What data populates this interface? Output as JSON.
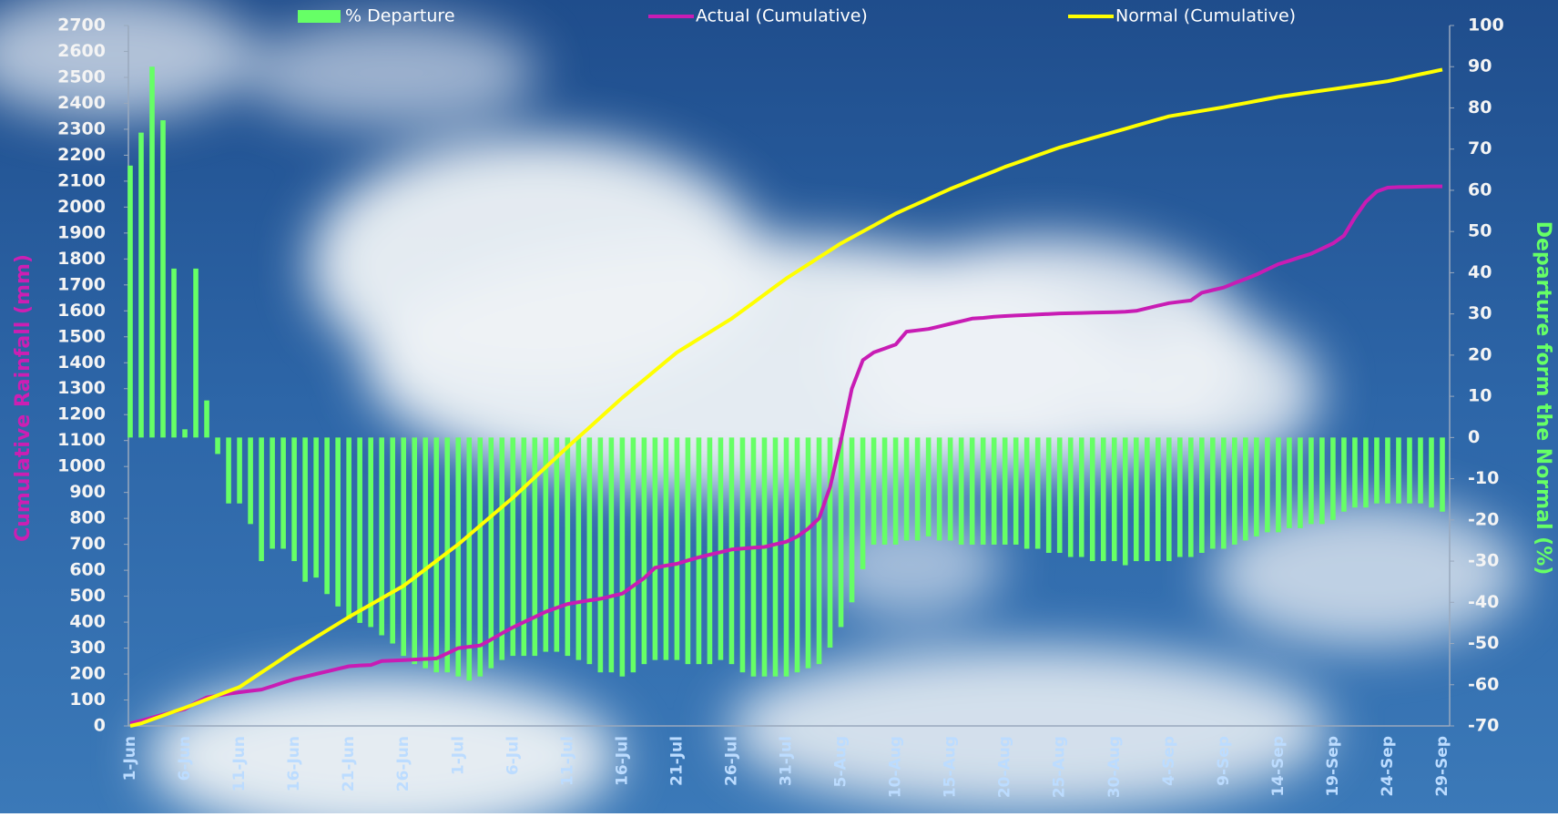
{
  "chart_data": {
    "type": "bar",
    "ylabel": "Cumulative Rainfall (mm)",
    "y2label": "Departure form the Normal (%)",
    "categories": [
      "1-Jun",
      null,
      null,
      null,
      null,
      "6-Jun",
      null,
      null,
      null,
      null,
      "11-Jun",
      null,
      null,
      null,
      null,
      "16-Jun",
      null,
      null,
      null,
      null,
      "21-Jun",
      null,
      null,
      null,
      null,
      "26-Jun",
      null,
      null,
      null,
      null,
      "1-Jul",
      null,
      null,
      null,
      null,
      "6-Jul",
      null,
      null,
      null,
      null,
      "11-Jul",
      null,
      null,
      null,
      null,
      "16-Jul",
      null,
      null,
      null,
      null,
      "21-Jul",
      null,
      null,
      null,
      null,
      "26-Jul",
      null,
      null,
      null,
      null,
      "31-Jul",
      null,
      null,
      null,
      null,
      "5-Aug",
      null,
      null,
      null,
      null,
      "10-Aug",
      null,
      null,
      null,
      null,
      "15-Aug",
      null,
      null,
      null,
      null,
      "20-Aug",
      null,
      null,
      null,
      null,
      "25-Aug",
      null,
      null,
      null,
      null,
      "30-Aug",
      null,
      null,
      null,
      null,
      "4-Sep",
      null,
      null,
      null,
      null,
      "9-Sep",
      null,
      null,
      null,
      null,
      "14-Sep",
      null,
      null,
      null,
      null,
      "19-Sep",
      null,
      null,
      null,
      null,
      "24-Sep",
      null,
      null,
      null,
      null,
      "29-Sep"
    ],
    "series": [
      {
        "name": "% Departure",
        "type": "bar",
        "axis": "y2",
        "color": "#66ff66",
        "values": [
          66,
          74,
          90,
          77,
          41,
          2,
          41,
          9,
          -4,
          -16,
          -16,
          -21,
          -30,
          -27,
          -27,
          -30,
          -35,
          -34,
          -38,
          -41,
          -44,
          -45,
          -46,
          -48,
          -50,
          -53,
          -55,
          -56,
          -57,
          -57,
          -58,
          -59,
          -58,
          -56,
          -54,
          -53,
          -53,
          -53,
          -52,
          -52,
          -53,
          -54,
          -55,
          -57,
          -57,
          -58,
          -57,
          -55,
          -54,
          -54,
          -54,
          -55,
          -55,
          -55,
          -54,
          -55,
          -57,
          -58,
          -58,
          -58,
          -58,
          -57,
          -56,
          -55,
          -51,
          -46,
          -40,
          -32,
          -26,
          -26,
          -26,
          -25,
          -25,
          -24,
          -25,
          -25,
          -26,
          -26,
          -26,
          -26,
          -26,
          -26,
          -27,
          -27,
          -28,
          -28,
          -29,
          -29,
          -30,
          -30,
          -30,
          -31,
          -30,
          -30,
          -30,
          -30,
          -29,
          -29,
          -28,
          -27,
          -27,
          -26,
          -25,
          -24,
          -23,
          -23,
          -22,
          -22,
          -21,
          -21,
          -20,
          -18,
          -17,
          -17,
          -16,
          -16,
          -16,
          -16,
          -16,
          -17,
          -18
        ]
      },
      {
        "name": "Actual (Cumulative)",
        "type": "line",
        "color": "#c81cb4",
        "values": [
          10,
          20,
          32,
          44,
          55,
          65,
          90,
          110,
          117,
          124,
          130,
          135,
          140,
          153,
          167,
          180,
          190,
          200,
          210,
          220,
          230,
          233,
          235,
          250,
          252,
          254,
          256,
          258,
          260,
          280,
          300,
          305,
          310,
          333,
          357,
          380,
          400,
          420,
          440,
          455,
          470,
          477,
          484,
          490,
          500,
          510,
          540,
          570,
          610,
          618,
          625,
          638,
          650,
          660,
          670,
          680,
          684,
          687,
          690,
          700,
          710,
          730,
          760,
          800,
          920,
          1100,
          1300,
          1410,
          1440,
          1455,
          1470,
          1520,
          1525,
          1530,
          1540,
          1550,
          1560,
          1570,
          1573,
          1577,
          1580,
          1582,
          1584,
          1586,
          1588,
          1590,
          1591,
          1592,
          1593,
          1594,
          1595,
          1597,
          1600,
          1610,
          1620,
          1630,
          1635,
          1640,
          1670,
          1680,
          1690,
          1707,
          1723,
          1740,
          1760,
          1780,
          1793,
          1807,
          1820,
          1840,
          1860,
          1890,
          1960,
          2020,
          2060,
          2075,
          2077,
          2078,
          2079,
          2080,
          2080
        ]
      },
      {
        "name": "Normal (Cumulative)",
        "type": "line",
        "color": "#ffff00",
        "values": [
          0,
          10,
          25,
          40,
          55,
          70,
          86,
          102,
          118,
          134,
          150,
          178,
          206,
          234,
          262,
          290,
          316,
          342,
          368,
          394,
          420,
          444,
          468,
          492,
          516,
          540,
          572,
          604,
          636,
          668,
          700,
          736,
          772,
          808,
          844,
          880,
          919,
          958,
          997,
          1036,
          1075,
          1113,
          1151,
          1189,
          1227,
          1265,
          1300,
          1335,
          1370,
          1405,
          1440,
          1466,
          1492,
          1518,
          1544,
          1570,
          1601,
          1632,
          1663,
          1694,
          1725,
          1752,
          1779,
          1806,
          1833,
          1860,
          1883,
          1906,
          1929,
          1952,
          1975,
          1994,
          2013,
          2032,
          2051,
          2070,
          2087,
          2104,
          2121,
          2138,
          2155,
          2170,
          2185,
          2200,
          2215,
          2230,
          2242,
          2254,
          2266,
          2278,
          2290,
          2302,
          2314,
          2326,
          2338,
          2350,
          2357,
          2364,
          2371,
          2378,
          2385,
          2393,
          2401,
          2409,
          2417,
          2425,
          2431,
          2437,
          2443,
          2449,
          2455,
          2461,
          2467,
          2473,
          2479,
          2485,
          2494,
          2503,
          2512,
          2521,
          2530
        ]
      }
    ],
    "ylim": [
      0,
      2700
    ],
    "yticks": [
      0,
      100,
      200,
      300,
      400,
      500,
      600,
      700,
      800,
      900,
      1000,
      1100,
      1200,
      1300,
      1400,
      1500,
      1600,
      1700,
      1800,
      1900,
      2000,
      2100,
      2200,
      2300,
      2400,
      2500,
      2600,
      2700
    ],
    "y2lim": [
      -70,
      100
    ],
    "y2ticks": [
      -70,
      -60,
      -50,
      -40,
      -30,
      -20,
      -10,
      0,
      10,
      20,
      30,
      40,
      50,
      60,
      70,
      80,
      90,
      100
    ],
    "grid": false
  }
}
